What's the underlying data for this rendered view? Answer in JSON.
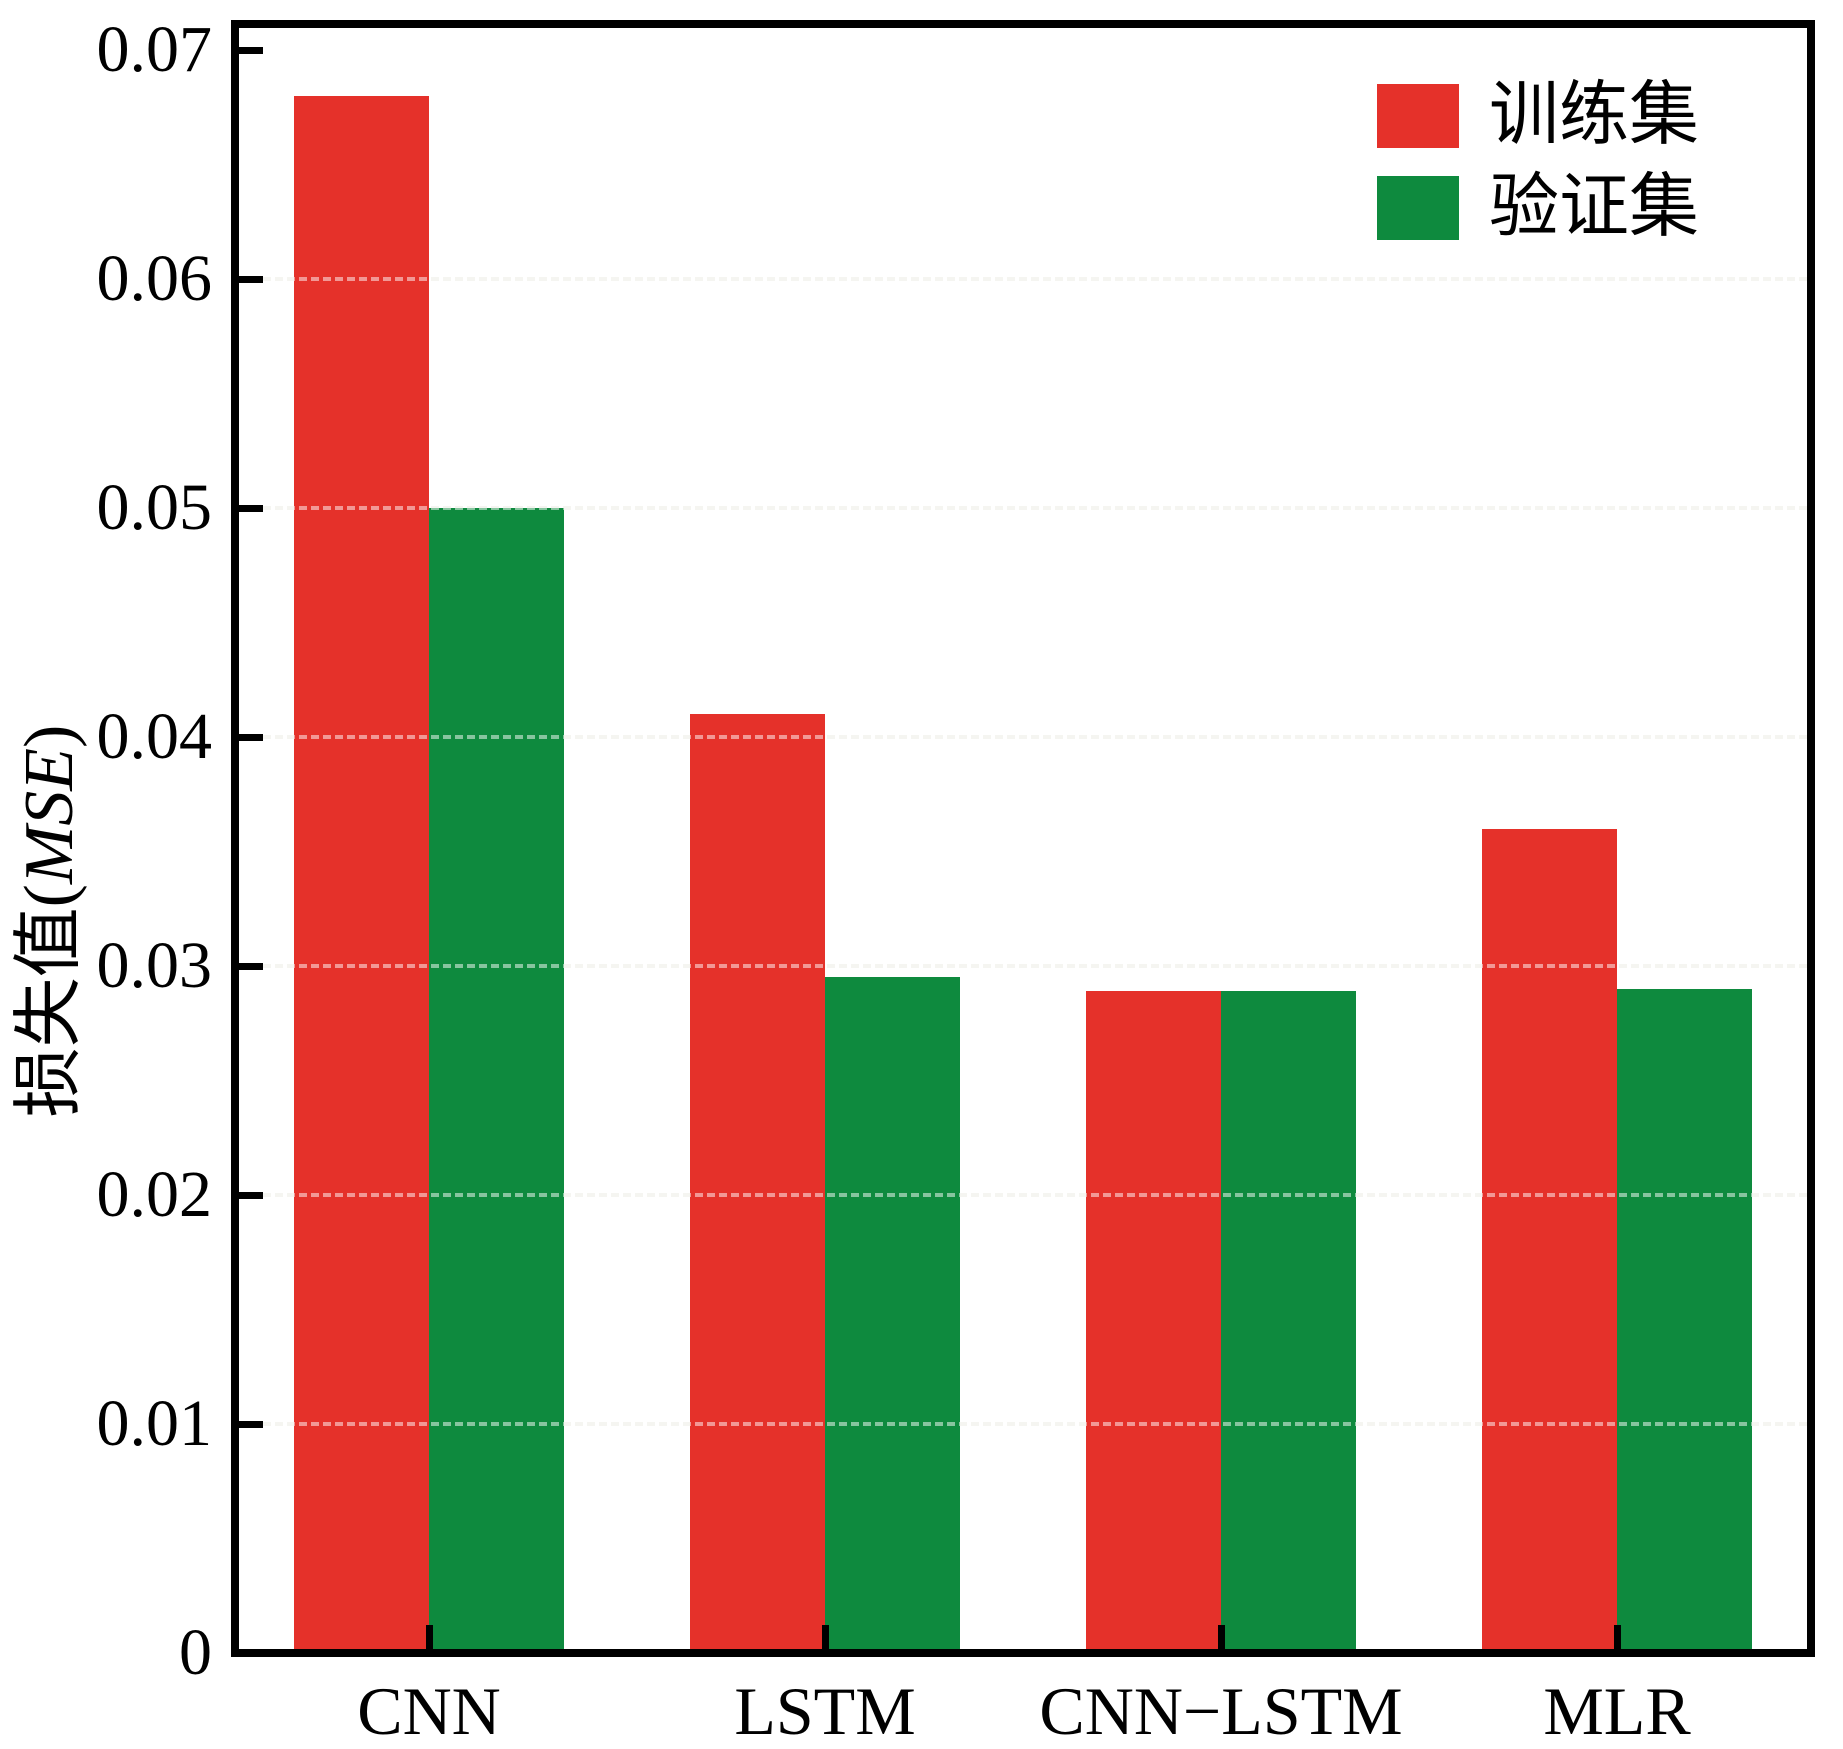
{
  "chart_data": {
    "type": "bar",
    "categories": [
      "CNN",
      "LSTM",
      "CNN−LSTM",
      "MLR"
    ],
    "series": [
      {
        "name": "训练集",
        "color": "#e5312a",
        "values": [
          0.068,
          0.041,
          0.0289,
          0.036
        ]
      },
      {
        "name": "验证集",
        "color": "#0e8a3e",
        "values": [
          0.05,
          0.0295,
          0.0289,
          0.029
        ]
      }
    ],
    "title": "",
    "xlabel": "",
    "ylabel": "损失值(MSE)",
    "ylabel_parts": {
      "prefix": "损失值(",
      "italic": "MSE",
      "suffix": ")"
    },
    "ylim": [
      0,
      0.0711
    ],
    "yticks": [
      0,
      0.01,
      0.02,
      0.03,
      0.04,
      0.05,
      0.06,
      0.07
    ],
    "ytick_labels": [
      "0",
      "0.01",
      "0.02",
      "0.03",
      "0.04",
      "0.05",
      "0.06",
      "0.07"
    ],
    "grid": "horizontal-dashed",
    "legend_position": "top-right",
    "bar_colors": {
      "train": "#e5312a",
      "validation": "#0e8a3e"
    }
  },
  "legend": {
    "items": [
      {
        "label": "训练集",
        "color": "#e5312a"
      },
      {
        "label": "验证集",
        "color": "#0e8a3e"
      }
    ]
  }
}
